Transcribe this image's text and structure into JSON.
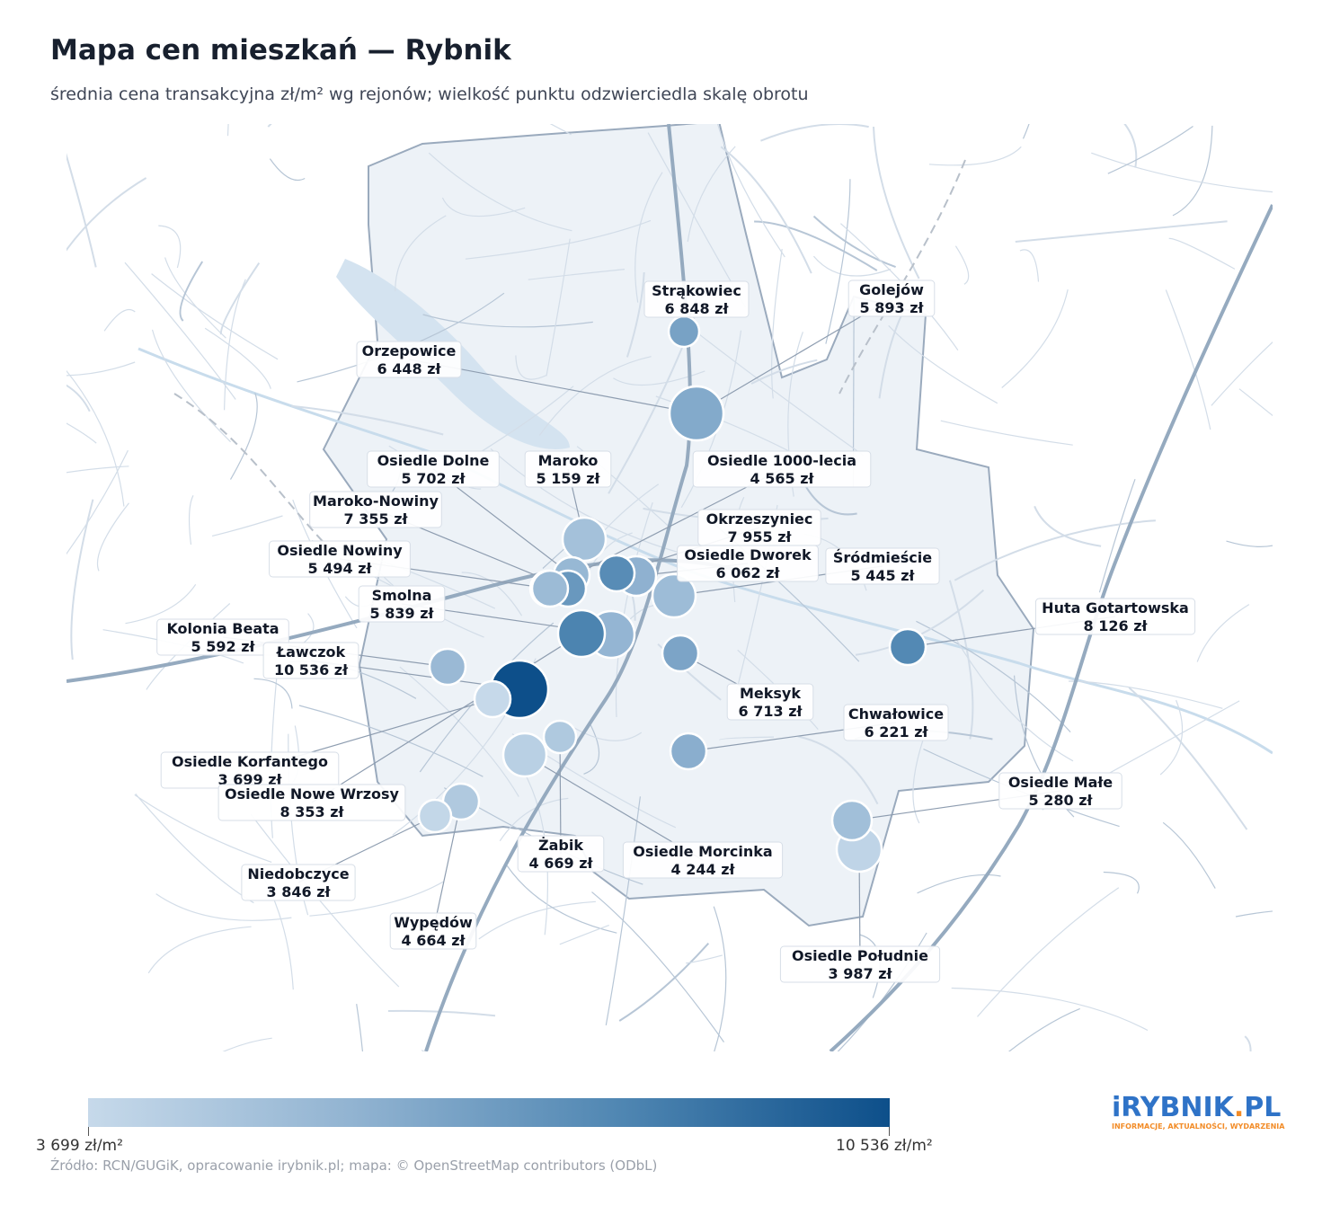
{
  "title": "Mapa cen mieszkań — Rybnik",
  "subtitle": "średnia cena transakcyjna zł/m² wg rejonów; wielkość punktu odzwierciedla skalę obrotu",
  "colorbar": {
    "min_label": "3 699 zł/m²",
    "max_label": "10 536 zł/m²",
    "min": 3699,
    "max": 10536
  },
  "source": "Źródło: RCN/GUGiK, opracowanie irybnik.pl; mapa: © OpenStreetMap contributors (ODbL)",
  "logo": {
    "main": "iRYBNIK",
    "dot": ".",
    "tld": "PL",
    "tagline": "INFORMACJE, AKTUALNOŚCI, WYDARZENIA"
  },
  "districts": [
    {
      "name": "Strąkowiec",
      "price_label": "6 848 zł",
      "price": 6848
    },
    {
      "name": "Golejów",
      "price_label": "5 893 zł",
      "price": 5893
    },
    {
      "name": "Orzepowice",
      "price_label": "6 448 zł",
      "price": 6448
    },
    {
      "name": "Osiedle Dolne",
      "price_label": "5 702 zł",
      "price": 5702
    },
    {
      "name": "Maroko",
      "price_label": "5 159 zł",
      "price": 5159
    },
    {
      "name": "Osiedle 1000-lecia",
      "price_label": "4 565 zł",
      "price": 4565
    },
    {
      "name": "Maroko-Nowiny",
      "price_label": "7 355 zł",
      "price": 7355
    },
    {
      "name": "Okrzeszyniec",
      "price_label": "7 955 zł",
      "price": 7955
    },
    {
      "name": "Osiedle Nowiny",
      "price_label": "5 494 zł",
      "price": 5494
    },
    {
      "name": "Osiedle Dworek",
      "price_label": "6 062 zł",
      "price": 6062
    },
    {
      "name": "Śródmieście",
      "price_label": "5 445 zł",
      "price": 5445
    },
    {
      "name": "Smolna",
      "price_label": "5 839 zł",
      "price": 5839
    },
    {
      "name": "Huta Gotartowska",
      "price_label": "8 126 zł",
      "price": 8126
    },
    {
      "name": "Kolonia Beata",
      "price_label": "5 592 zł",
      "price": 5592
    },
    {
      "name": "Ławczok",
      "price_label": "10 536 zł",
      "price": 10536
    },
    {
      "name": "Meksyk",
      "price_label": "6 713 zł",
      "price": 6713
    },
    {
      "name": "Chwałowice",
      "price_label": "6 221 zł",
      "price": 6221
    },
    {
      "name": "Osiedle Korfantego",
      "price_label": "3 699 zł",
      "price": 3699
    },
    {
      "name": "Osiedle Nowe Wrzosy",
      "price_label": "8 353 zł",
      "price": 8353
    },
    {
      "name": "Osiedle Małe",
      "price_label": "5 280 zł",
      "price": 5280
    },
    {
      "name": "Żabik",
      "price_label": "4 669 zł",
      "price": 4669
    },
    {
      "name": "Osiedle Morcinka",
      "price_label": "4 244 zł",
      "price": 4244
    },
    {
      "name": "Niedobczyce",
      "price_label": "3 846 zł",
      "price": 3846
    },
    {
      "name": "Wypędów",
      "price_label": "4 664 zł",
      "price": 4664
    },
    {
      "name": "Osiedle Południe",
      "price_label": "3 987 zł",
      "price": 3987
    }
  ]
}
